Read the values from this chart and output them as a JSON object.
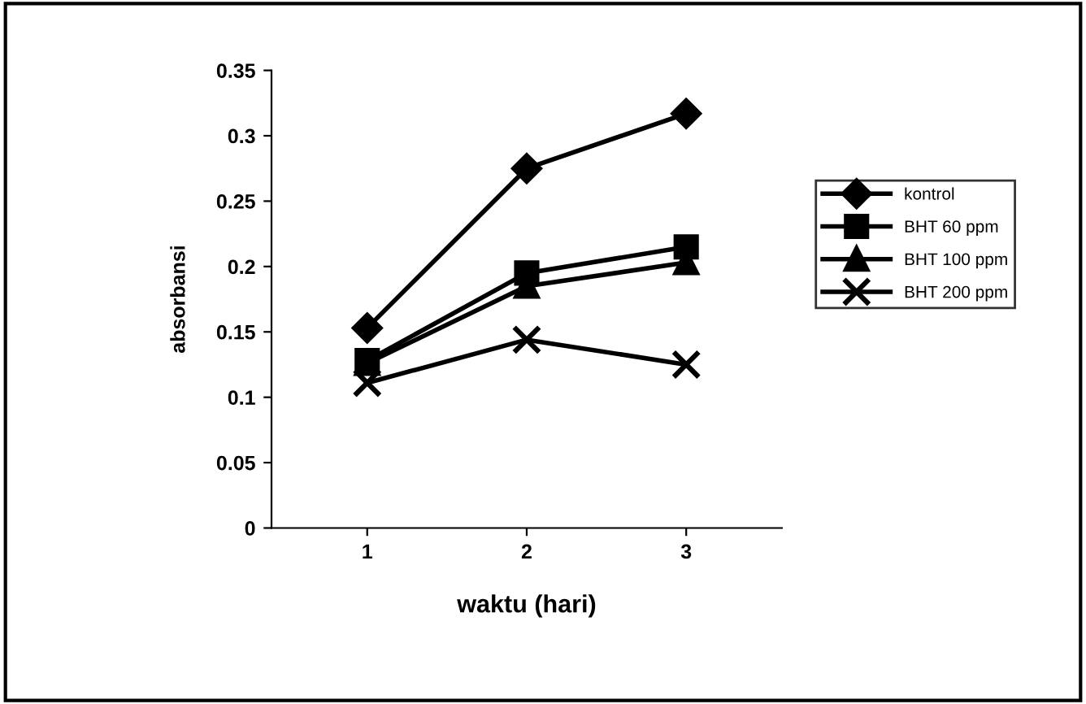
{
  "chart_data": {
    "type": "line",
    "xlabel": "waktu (hari)",
    "ylabel": "absorbansi",
    "categories": [
      "1",
      "2",
      "3"
    ],
    "series": [
      {
        "name": "kontrol",
        "color": "#000000",
        "marker": "diamond",
        "values": [
          0.153,
          0.275,
          0.317
        ]
      },
      {
        "name": "BHT 60 ppm",
        "color": "#000000",
        "marker": "square",
        "values": [
          0.128,
          0.195,
          0.215
        ]
      },
      {
        "name": "BHT 100 ppm",
        "color": "#000000",
        "marker": "triangle",
        "values": [
          0.126,
          0.185,
          0.203
        ]
      },
      {
        "name": "BHT 200 ppm",
        "color": "#000000",
        "marker": "cross",
        "values": [
          0.111,
          0.144,
          0.125
        ]
      }
    ],
    "ylim": [
      0,
      0.35
    ],
    "yticks": [
      0,
      0.05,
      0.1,
      0.15,
      0.2,
      0.25,
      0.3,
      0.35
    ],
    "grid": false,
    "legend": "right",
    "line_style": "solid"
  }
}
